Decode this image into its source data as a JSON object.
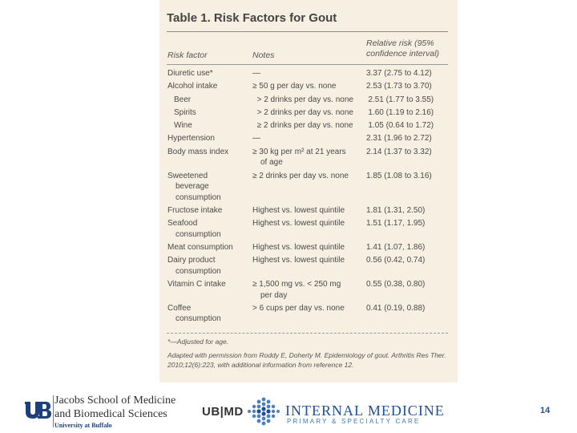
{
  "table": {
    "title": "Table 1. Risk Factors for Gout",
    "headers": {
      "factor": "Risk factor",
      "notes": "Notes",
      "rr": "Relative risk (95% confidence interval)"
    },
    "rows": [
      {
        "factor": "Diuretic use*",
        "notes": "—",
        "rr": "3.37 (2.75 to 4.12)"
      },
      {
        "factor": "Alcohol intake",
        "notes": "≥ 50 g per day vs. none",
        "rr": "2.53 (1.73 to 3.70)"
      },
      {
        "factor": "Beer",
        "notes": "> 2 drinks per day vs. none",
        "rr": "2.51 (1.77 to 3.55)"
      },
      {
        "factor": "Spirits",
        "notes": "> 2 drinks per day vs. none",
        "rr": "1.60 (1.19 to 2.16)"
      },
      {
        "factor": "Wine",
        "notes": "≥ 2 drinks per day vs. none",
        "rr": "1.05 (0.64 to 1.72)"
      },
      {
        "factor": "Hypertension",
        "notes": "—",
        "rr": "2.31 (1.96 to 2.72)"
      },
      {
        "factor": "Body mass index",
        "notes": "≥ 30 kg per m² at 21 years",
        "notes2": "of age",
        "rr": "2.14 (1.37 to 3.32)"
      },
      {
        "factor": "Sweetened",
        "factor2": "beverage",
        "factor3": "consumption",
        "notes": "≥ 2 drinks per day vs. none",
        "rr": "1.85 (1.08 to 3.16)"
      },
      {
        "factor": "Fructose intake",
        "notes": "Highest vs. lowest quintile",
        "rr": "1.81 (1.31, 2.50)"
      },
      {
        "factor": "Seafood",
        "factor2": "consumption",
        "notes": "Highest vs. lowest quintile",
        "rr": "1.51 (1.17, 1.95)"
      },
      {
        "factor": "Meat consumption",
        "notes": "Highest vs. lowest quintile",
        "rr": "1.41 (1.07, 1.86)"
      },
      {
        "factor": "Dairy product",
        "factor2": "consumption",
        "notes": "Highest vs. lowest quintile",
        "rr": "0.56 (0.42, 0.74)"
      },
      {
        "factor": "Vitamin C intake",
        "notes": "≥ 1,500 mg vs. < 250 mg",
        "notes2": "per day",
        "rr": "0.55 (0.38, 0.80)"
      },
      {
        "factor": "Coffee",
        "factor2": "consumption",
        "notes": "> 6 cups per day vs. none",
        "rr": "0.41 (0.19, 0.88)"
      }
    ],
    "footnote_adjusted": "*—Adjusted for age.",
    "footnote_source": "Adapted with permission from Roddy E, Doherty M. Epidemiology of gout. Arthritis Res Ther. 2010;12(6):223, with additional information from reference 12."
  },
  "footer": {
    "school_line1": "Jacobs School of Medicine",
    "school_line2": "and Biomedical Sciences",
    "school_line3": "University at Buffalo",
    "ubmd": "UB|MD",
    "im_title": "INTERNAL MEDICINE",
    "im_subtitle": "PRIMARY & SPECIALTY CARE",
    "page_number": "14",
    "colors": {
      "ub_blue": "#1f3f7a",
      "im_blue": "#1e4f9e",
      "panel": "#f7efe2"
    }
  }
}
